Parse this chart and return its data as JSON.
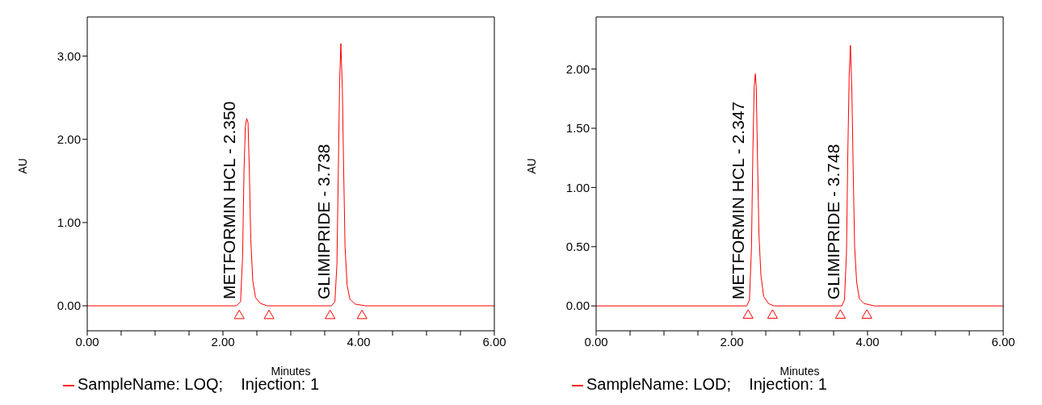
{
  "chart_data": [
    {
      "type": "line",
      "xlabel": "Minutes",
      "ylabel": "AU",
      "xlim": [
        0,
        6
      ],
      "ylim": [
        -0.3,
        3.47
      ],
      "xticks": [
        {
          "value": 0,
          "label": "0.00"
        },
        {
          "value": 0.5,
          "label": null
        },
        {
          "value": 1,
          "label": null
        },
        {
          "value": 1.5,
          "label": null
        },
        {
          "value": 2,
          "label": "2.00"
        },
        {
          "value": 2.5,
          "label": null
        },
        {
          "value": 3,
          "label": null
        },
        {
          "value": 3.5,
          "label": null
        },
        {
          "value": 4,
          "label": "4.00"
        },
        {
          "value": 4.5,
          "label": null
        },
        {
          "value": 5,
          "label": null
        },
        {
          "value": 5.5,
          "label": null
        },
        {
          "value": 6,
          "label": "6.00"
        }
      ],
      "yticks": [
        {
          "value": 0,
          "label": "0.00"
        },
        {
          "value": 1,
          "label": "1.00"
        },
        {
          "value": 2,
          "label": "2.00"
        },
        {
          "value": 3,
          "label": "3.00"
        }
      ],
      "grid": false,
      "legend": "bottom",
      "series": [
        {
          "name": "SampleName: LOQ;    Injection: 1",
          "color": "#ff0000",
          "marker": "none",
          "x": [
            0,
            2.2,
            2.26,
            2.29,
            2.31,
            2.33,
            2.35,
            2.37,
            2.39,
            2.41,
            2.44,
            2.48,
            2.55,
            2.65,
            3.6,
            3.65,
            3.68,
            3.7,
            3.72,
            3.738,
            3.76,
            3.78,
            3.8,
            3.83,
            3.87,
            3.95,
            4.1,
            6
          ],
          "values": [
            0,
            0,
            0.05,
            0.6,
            1.6,
            2.15,
            2.25,
            2.2,
            1.6,
            0.8,
            0.3,
            0.1,
            0.03,
            0,
            0,
            0.05,
            0.5,
            1.6,
            2.7,
            3.15,
            2.6,
            1.6,
            0.7,
            0.25,
            0.08,
            0.02,
            0,
            0
          ]
        },
        {
          "color": "#ff0000",
          "type": "scatter",
          "marker": "triangle",
          "x": [
            2.24,
            2.68,
            3.58,
            4.05
          ],
          "values": [
            -0.12,
            -0.12,
            -0.12,
            -0.12
          ]
        }
      ],
      "annotations": [
        "METFORMIN HCL - 2.350",
        "GLIMIPRIDE - 3.738"
      ]
    },
    {
      "type": "line",
      "xlabel": "Minutes",
      "ylabel": "AU",
      "xlim": [
        0,
        6
      ],
      "ylim": [
        -0.21,
        2.44
      ],
      "xticks": [
        {
          "value": 0,
          "label": "0.00"
        },
        {
          "value": 0.5,
          "label": null
        },
        {
          "value": 1,
          "label": null
        },
        {
          "value": 1.5,
          "label": null
        },
        {
          "value": 2,
          "label": "2.00"
        },
        {
          "value": 2.5,
          "label": null
        },
        {
          "value": 3,
          "label": null
        },
        {
          "value": 3.5,
          "label": null
        },
        {
          "value": 4,
          "label": "4.00"
        },
        {
          "value": 4.5,
          "label": null
        },
        {
          "value": 5,
          "label": null
        },
        {
          "value": 5.5,
          "label": null
        },
        {
          "value": 6,
          "label": "6.00"
        }
      ],
      "yticks": [
        {
          "value": 0,
          "label": "0.00"
        },
        {
          "value": 0.5,
          "label": "0.50"
        },
        {
          "value": 1,
          "label": "1.00"
        },
        {
          "value": 1.5,
          "label": "1.50"
        },
        {
          "value": 2,
          "label": "2.00"
        }
      ],
      "grid": false,
      "legend": "bottom",
      "series": [
        {
          "name": "SampleName: LOD;    Injection: 1",
          "color": "#ff0000",
          "marker": "none",
          "x": [
            0,
            2.22,
            2.26,
            2.29,
            2.31,
            2.33,
            2.347,
            2.36,
            2.38,
            2.4,
            2.43,
            2.47,
            2.54,
            2.62,
            3.62,
            3.66,
            3.69,
            3.71,
            3.73,
            3.748,
            3.77,
            3.79,
            3.81,
            3.84,
            3.88,
            3.95,
            4.1,
            6
          ],
          "values": [
            0,
            0,
            0.05,
            0.5,
            1.3,
            1.85,
            1.96,
            1.85,
            1.2,
            0.6,
            0.25,
            0.08,
            0.02,
            0,
            0,
            0.05,
            0.45,
            1.3,
            1.95,
            2.2,
            1.8,
            1.1,
            0.5,
            0.2,
            0.06,
            0.02,
            0,
            0
          ]
        },
        {
          "color": "#ff0000",
          "type": "scatter",
          "marker": "triangle",
          "x": [
            2.24,
            2.6,
            3.6,
            3.99
          ],
          "values": [
            -0.08,
            -0.08,
            -0.08,
            -0.08
          ]
        }
      ],
      "annotations": [
        "METFORMIN HCL - 2.347",
        "GLIMIPRIDE - 3.748"
      ]
    }
  ]
}
